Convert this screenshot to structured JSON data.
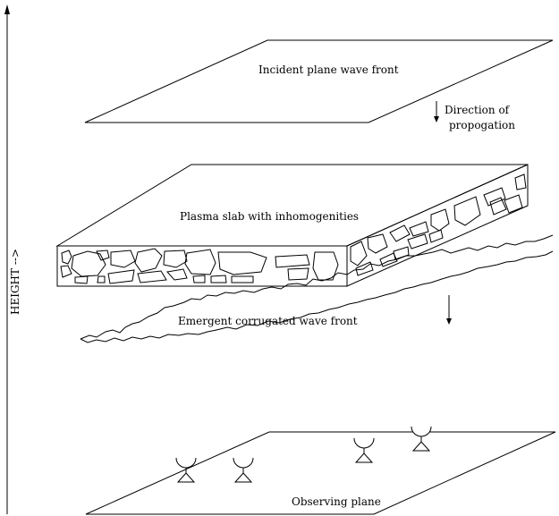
{
  "labels": {
    "incident": "Incident plane wave front",
    "direction_line1": "Direction of",
    "direction_line2": "propogation",
    "slab": "Plasma slab with inhomogenities",
    "emergent": "Emergent corrugated wave front",
    "observing": "Observing plane",
    "height": "HEIGHT -->"
  },
  "antenna_count": 4
}
